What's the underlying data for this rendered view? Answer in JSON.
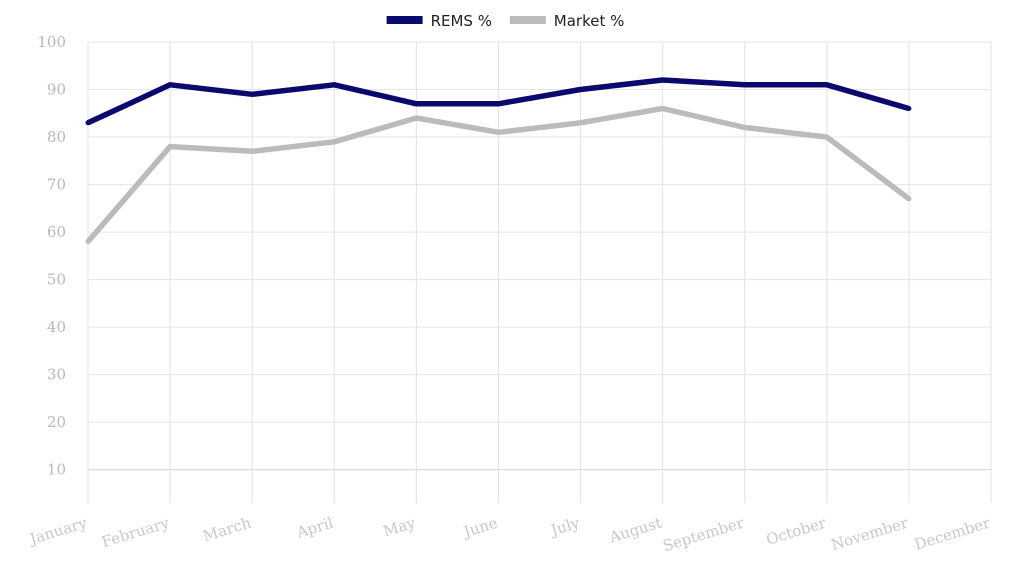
{
  "chart_data": {
    "type": "line",
    "title": "",
    "xlabel": "",
    "ylabel": "",
    "categories": [
      "January",
      "February",
      "March",
      "April",
      "May",
      "June",
      "July",
      "August",
      "September",
      "October",
      "November",
      "December"
    ],
    "yticks": [
      10,
      20,
      30,
      40,
      50,
      60,
      70,
      80,
      90,
      100
    ],
    "ylim": [
      3,
      100
    ],
    "grid": true,
    "legend_position": "top-center",
    "series": [
      {
        "name": "REMS %",
        "color": "#0a0a6e",
        "values": [
          83,
          91,
          89,
          91,
          87,
          87,
          90,
          92,
          91,
          91,
          86,
          null
        ]
      },
      {
        "name": "Market %",
        "color": "#bbbbbb",
        "values": [
          58,
          78,
          77,
          79,
          84,
          81,
          83,
          86,
          82,
          80,
          67,
          null
        ]
      }
    ]
  }
}
